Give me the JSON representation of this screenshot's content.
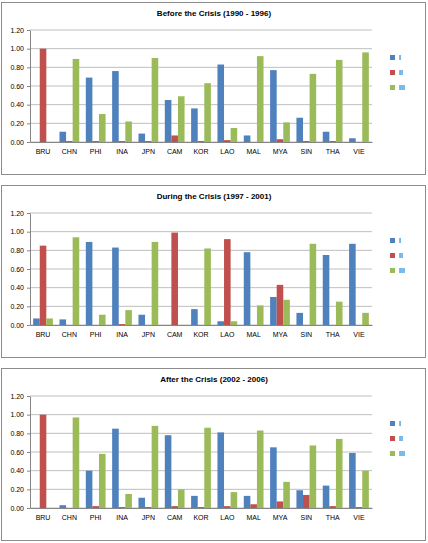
{
  "chart_data": [
    {
      "type": "bar",
      "title": "Before the Crisis (1990 - 1996)",
      "categories": [
        "BRU",
        "CHN",
        "PHI",
        "INA",
        "JPN",
        "CAM",
        "KOR",
        "LAO",
        "MAL",
        "MYA",
        "SIN",
        "THA",
        "VIE"
      ],
      "series": [
        {
          "name": "I",
          "color": "#4f81bd",
          "values": [
            0,
            0.11,
            0.69,
            0.76,
            0.09,
            0.45,
            0.36,
            0.83,
            0.07,
            0.77,
            0.26,
            0.11,
            0.04
          ]
        },
        {
          "name": "II",
          "color": "#c0504d",
          "values": [
            1.0,
            0.01,
            0.01,
            0.01,
            0.01,
            0.07,
            0.01,
            0.02,
            0.0,
            0.03,
            0.01,
            0.01,
            0.0
          ]
        },
        {
          "name": "III",
          "color": "#9bbb59",
          "values": [
            0,
            0.89,
            0.3,
            0.22,
            0.9,
            0.49,
            0.63,
            0.15,
            0.92,
            0.21,
            0.73,
            0.88,
            0.96
          ]
        }
      ],
      "ylim": [
        0,
        1.2
      ],
      "yticks": [
        {
          "value": 0,
          "label": "0.00"
        },
        {
          "value": 0.2,
          "label": "0.20"
        },
        {
          "value": 0.4,
          "label": "0.40"
        },
        {
          "value": 0.6,
          "label": "0.60"
        },
        {
          "value": 0.8,
          "label": "0.80"
        },
        {
          "value": 1.0,
          "label": "1.00"
        },
        {
          "value": 1.2,
          "label": "1.20"
        }
      ],
      "grid": true,
      "legend": "right"
    },
    {
      "type": "bar",
      "title": "During the Crisis (1997 - 2001)",
      "categories": [
        "BRU",
        "CHN",
        "PHI",
        "INA",
        "JPN",
        "CAM",
        "KOR",
        "LAO",
        "MAL",
        "MYA",
        "SIN",
        "THA",
        "VIE"
      ],
      "series": [
        {
          "name": "I",
          "color": "#4f81bd",
          "values": [
            0.07,
            0.06,
            0.89,
            0.83,
            0.11,
            0.0,
            0.17,
            0.04,
            0.78,
            0.3,
            0.13,
            0.75,
            0.87
          ]
        },
        {
          "name": "II",
          "color": "#c0504d",
          "values": [
            0.85,
            0.0,
            0.0,
            0.01,
            0.0,
            0.99,
            0.0,
            0.92,
            0.0,
            0.43,
            0.0,
            0.0,
            0.0
          ]
        },
        {
          "name": "III",
          "color": "#9bbb59",
          "values": [
            0.07,
            0.94,
            0.11,
            0.16,
            0.89,
            0.0,
            0.82,
            0.04,
            0.21,
            0.27,
            0.87,
            0.25,
            0.13
          ]
        }
      ],
      "ylim": [
        0,
        1.2
      ],
      "yticks": [
        {
          "value": 0,
          "label": "0.00"
        },
        {
          "value": 0.2,
          "label": "0.20"
        },
        {
          "value": 0.4,
          "label": "0.40"
        },
        {
          "value": 0.6,
          "label": "0.60"
        },
        {
          "value": 0.8,
          "label": "0.80"
        },
        {
          "value": 1.0,
          "label": "1.00"
        },
        {
          "value": 1.2,
          "label": "1.20"
        }
      ],
      "grid": true,
      "legend": "right"
    },
    {
      "type": "bar",
      "title": "After the Crisis (2002 - 2006)",
      "categories": [
        "BRU",
        "CHN",
        "PHI",
        "INA",
        "JPN",
        "CAM",
        "KOR",
        "LAO",
        "MAL",
        "MYA",
        "SIN",
        "THA",
        "VIE"
      ],
      "series": [
        {
          "name": "I",
          "color": "#4f81bd",
          "values": [
            0,
            0.03,
            0.4,
            0.85,
            0.11,
            0.78,
            0.13,
            0.81,
            0.13,
            0.65,
            0.19,
            0.24,
            0.59
          ]
        },
        {
          "name": "II",
          "color": "#c0504d",
          "values": [
            1.0,
            0.0,
            0.02,
            0.01,
            0.01,
            0.02,
            0.01,
            0.02,
            0.04,
            0.07,
            0.14,
            0.02,
            0.01
          ]
        },
        {
          "name": "III",
          "color": "#9bbb59",
          "values": [
            0,
            0.97,
            0.58,
            0.15,
            0.88,
            0.2,
            0.86,
            0.17,
            0.83,
            0.28,
            0.67,
            0.74,
            0.4
          ]
        }
      ],
      "ylim": [
        0,
        1.2
      ],
      "yticks": [
        {
          "value": 0,
          "label": "0.00"
        },
        {
          "value": 0.2,
          "label": "0.20"
        },
        {
          "value": 0.4,
          "label": "0.40"
        },
        {
          "value": 0.6,
          "label": "0.60"
        },
        {
          "value": 0.8,
          "label": "0.80"
        },
        {
          "value": 1.0,
          "label": "1.00"
        },
        {
          "value": 1.2,
          "label": "1.20"
        }
      ],
      "grid": true,
      "legend": "right"
    }
  ]
}
